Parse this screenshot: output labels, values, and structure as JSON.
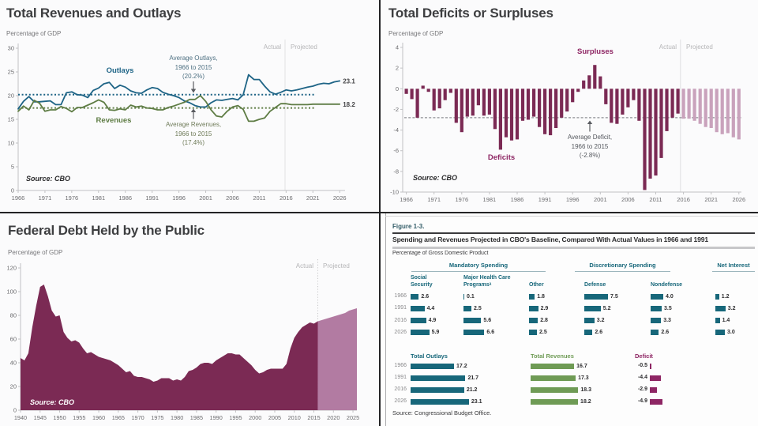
{
  "chart_data": [
    {
      "type": "line",
      "title": "Total Revenues and Outlays",
      "ylabel": "Percentage of GDP",
      "source": "Source:  CBO",
      "actual_label": "Actual",
      "projected_label": "Projected",
      "x_start": 1966,
      "xlim": [
        1966,
        2026
      ],
      "ylim": [
        0,
        30
      ],
      "y_ticks": [
        0,
        5,
        10,
        15,
        20,
        25,
        30
      ],
      "x_ticks": [
        1966,
        1971,
        1976,
        1981,
        1986,
        1991,
        1996,
        2001,
        2006,
        2011,
        2016,
        2021,
        2026
      ],
      "series": [
        {
          "name": "Outlays",
          "color": "#1e6486",
          "average": 20.2,
          "end_label": "23.1",
          "values": [
            17.2,
            18.8,
            19.8,
            18.7,
            18.7,
            18.8,
            18.9,
            18.1,
            18.1,
            20.6,
            20.8,
            20.2,
            20.1,
            19.6,
            21.1,
            21.6,
            22.5,
            22.8,
            21.5,
            22.2,
            21.8,
            21.0,
            20.6,
            20.5,
            21.2,
            21.7,
            21.5,
            20.7,
            20.3,
            20.0,
            19.6,
            18.9,
            18.5,
            17.9,
            17.6,
            17.6,
            18.5,
            19.1,
            19.0,
            19.2,
            19.4,
            19.1,
            20.2,
            24.4,
            23.4,
            23.4,
            22.0,
            20.8,
            20.3,
            20.7,
            21.2,
            21.0,
            21.2,
            21.5,
            21.8,
            22.0,
            22.4,
            22.6,
            22.5,
            22.9,
            23.1
          ]
        },
        {
          "name": "Revenues",
          "color": "#5e7c44",
          "average": 17.4,
          "end_label": "18.2",
          "values": [
            16.7,
            17.8,
            17.0,
            19.0,
            18.4,
            16.7,
            17.0,
            17.0,
            17.7,
            17.3,
            16.6,
            17.5,
            17.5,
            18.0,
            18.5,
            19.1,
            18.6,
            17.0,
            16.9,
            17.2,
            17.0,
            18.0,
            17.6,
            17.8,
            17.4,
            17.3,
            17.0,
            17.0,
            17.5,
            17.8,
            18.2,
            18.6,
            19.2,
            19.2,
            20.0,
            18.8,
            17.0,
            15.7,
            15.5,
            16.7,
            17.6,
            17.9,
            17.1,
            14.6,
            14.6,
            15.0,
            15.3,
            16.7,
            17.5,
            18.3,
            18.3,
            18.1,
            18.1,
            18.1,
            18.1,
            18.2,
            18.2,
            18.2,
            18.2,
            18.2,
            18.2
          ]
        }
      ],
      "annotations": {
        "avg_outlays": [
          "Average Outlays,",
          "1966 to 2015",
          "(20.2%)"
        ],
        "avg_revenues": [
          "Average Revenues,",
          "1966 to 2015",
          "(17.4%)"
        ]
      }
    },
    {
      "type": "bar",
      "title": "Total Deficits or Surpluses",
      "ylabel": "Percentage of GDP",
      "source": "Source:  CBO",
      "actual_label": "Actual",
      "projected_label": "Projected",
      "x_start": 1966,
      "xlim": [
        1966,
        2026
      ],
      "ylim": [
        -10,
        4
      ],
      "y_ticks": [
        "4",
        "2",
        "0",
        "-2",
        "-4",
        "-6",
        "-8",
        "-10"
      ],
      "x_ticks": [
        1966,
        1971,
        1976,
        1981,
        1986,
        1991,
        1996,
        2001,
        2006,
        2011,
        2016,
        2021,
        2026
      ],
      "average": -2.8,
      "projected_from": 2016,
      "color": "#7b2a54",
      "projected_color": "#c9a2bc",
      "surpluses_label": "Surpluses",
      "deficits_label": "Deficits",
      "values": [
        -0.5,
        -1.0,
        -2.8,
        0.3,
        -0.3,
        -2.1,
        -1.9,
        -1.1,
        -0.4,
        -3.3,
        -4.2,
        -2.7,
        -2.6,
        -1.6,
        -2.6,
        -2.5,
        -3.9,
        -5.9,
        -4.7,
        -5.0,
        -4.9,
        -3.1,
        -3.0,
        -2.7,
        -3.7,
        -4.4,
        -4.5,
        -3.8,
        -2.8,
        -2.2,
        -1.3,
        -0.3,
        0.8,
        1.3,
        2.3,
        1.2,
        -1.5,
        -3.3,
        -3.4,
        -2.5,
        -1.8,
        -1.1,
        -3.1,
        -9.8,
        -8.7,
        -8.4,
        -6.7,
        -4.1,
        -2.8,
        -2.4,
        -2.9,
        -2.9,
        -3.1,
        -3.4,
        -3.7,
        -3.8,
        -4.2,
        -4.4,
        -4.3,
        -4.7,
        -4.9
      ],
      "annotations": {
        "avg_deficit": [
          "Average Deficit,",
          "1966 to 2015",
          "(-2.8%)"
        ]
      }
    },
    {
      "type": "area",
      "title": "Federal Debt Held by the Public",
      "ylabel": "Percentage of GDP",
      "source": "Source:  CBO",
      "actual_label": "Actual",
      "projected_label": "Projected",
      "x_start": 1940,
      "xlim": [
        1940,
        2026
      ],
      "ylim": [
        0,
        120
      ],
      "y_ticks": [
        0,
        20,
        40,
        60,
        80,
        100,
        120
      ],
      "x_ticks": [
        1940,
        1945,
        1950,
        1955,
        1960,
        1965,
        1970,
        1975,
        1980,
        1985,
        1990,
        1995,
        2000,
        2005,
        2010,
        2015,
        2020,
        2025
      ],
      "projected_from": 2016,
      "color": "#7b2a54",
      "projected_color": "#b27ba2",
      "values": [
        44,
        42,
        48,
        70,
        88,
        104,
        106,
        96,
        84,
        79,
        80,
        66,
        61,
        58,
        59,
        57,
        52,
        48,
        49,
        47,
        45,
        44,
        43,
        42,
        40,
        38,
        35,
        32,
        33,
        29,
        28,
        28,
        27,
        26,
        24,
        25,
        27,
        27,
        27,
        25,
        26,
        25,
        28,
        33,
        34,
        36,
        39,
        40,
        40,
        39,
        42,
        44,
        46,
        48,
        48,
        47,
        47,
        44,
        41,
        38,
        34,
        31,
        32,
        34,
        35,
        35,
        35,
        35,
        39,
        52,
        61,
        66,
        70,
        72,
        74,
        73,
        75,
        76,
        77,
        78,
        79,
        80,
        81,
        82,
        84,
        85,
        86
      ]
    },
    {
      "type": "table",
      "figure_label": "Figure 1-3.",
      "title": "Spending and Revenues Projected in CBO's Baseline, Compared With Actual Values in 1966 and 1991",
      "subtitle": "Percentage of Gross Domestic Product",
      "source": "Source: Congressional Budget Office.",
      "group_headers": [
        "Mandatory Spending",
        "Discretionary Spending",
        "Net Interest"
      ],
      "columns": [
        {
          "key": "social_security",
          "header_lines": [
            "Social",
            "Security"
          ]
        },
        {
          "key": "major_health_care",
          "header_lines": [
            "Major Health Care",
            "Programsᵃ"
          ]
        },
        {
          "key": "other",
          "header_lines": [
            "Other"
          ]
        },
        {
          "key": "defense",
          "header_lines": [
            "Defense"
          ]
        },
        {
          "key": "nondefense",
          "header_lines": [
            "Nondefense"
          ]
        },
        {
          "key": "net_interest",
          "header_lines": []
        }
      ],
      "years": [
        "1966",
        "1991",
        "2016",
        "2026"
      ],
      "values": {
        "social_security": [
          "2.6",
          "4.4",
          "4.9",
          "5.9"
        ],
        "major_health_care": [
          "0.1",
          "2.5",
          "5.6",
          "6.6"
        ],
        "other": [
          "1.8",
          "2.9",
          "2.8",
          "2.5"
        ],
        "defense": [
          "7.5",
          "5.2",
          "3.2",
          "2.6"
        ],
        "nondefense": [
          "4.0",
          "3.5",
          "3.3",
          "2.6"
        ],
        "net_interest": [
          "1.2",
          "3.2",
          "1.4",
          "3.0"
        ]
      },
      "totals": {
        "outlays_label": "Total Outlays",
        "revenues_label": "Total Revenues",
        "deficit_label": "Deficit",
        "outlays": [
          "17.2",
          "21.7",
          "21.2",
          "23.1"
        ],
        "revenues": [
          "16.7",
          "17.3",
          "18.3",
          "18.2"
        ],
        "deficit": [
          "-0.5",
          "-4.4",
          "-2.9",
          "-4.9"
        ]
      },
      "colors": {
        "spending": "#17677a",
        "revenues": "#6f9b55",
        "deficit": "#8e2664"
      }
    }
  ]
}
